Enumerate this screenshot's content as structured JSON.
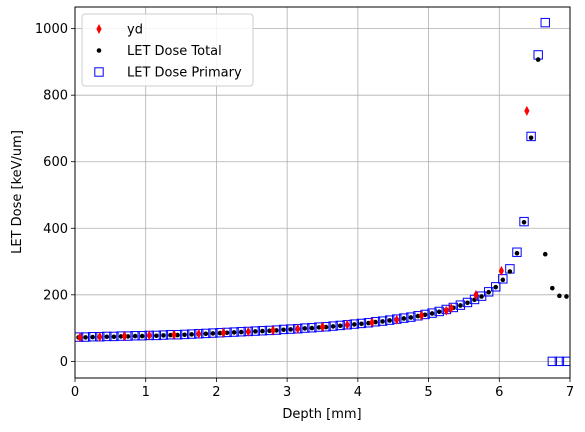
{
  "chart_data": {
    "type": "scatter",
    "xlabel": "Depth [mm]",
    "ylabel": "LET Dose [keV/um]",
    "xlim": [
      0,
      7
    ],
    "ylim": [
      -50,
      1065
    ],
    "xticks": [
      0,
      1,
      2,
      3,
      4,
      5,
      6,
      7
    ],
    "yticks": [
      0,
      200,
      400,
      600,
      800,
      1000
    ],
    "grid": true,
    "legend_position": "upper-left",
    "series": [
      {
        "name": "yd",
        "marker": "thin_diamond",
        "color": "#ff0000",
        "x": [
          0.07,
          0.35,
          0.7,
          1.05,
          1.4,
          1.75,
          2.1,
          2.45,
          2.8,
          3.15,
          3.5,
          3.85,
          4.2,
          4.55,
          4.9,
          5.25,
          5.32,
          5.67,
          6.03,
          6.39
        ],
        "y": [
          72,
          74,
          76,
          78,
          80,
          83,
          86,
          89,
          93,
          98,
          104,
          110,
          117,
          125,
          138,
          152,
          160,
          200,
          272,
          753
        ]
      },
      {
        "name": "LET Dose Total",
        "marker": "dot",
        "color": "#000000",
        "x": [
          0.05,
          0.15,
          0.25,
          0.35,
          0.45,
          0.55,
          0.65,
          0.75,
          0.85,
          0.95,
          1.05,
          1.15,
          1.25,
          1.35,
          1.45,
          1.55,
          1.65,
          1.75,
          1.85,
          1.95,
          2.05,
          2.15,
          2.25,
          2.35,
          2.45,
          2.55,
          2.65,
          2.75,
          2.85,
          2.95,
          3.05,
          3.15,
          3.25,
          3.35,
          3.45,
          3.55,
          3.65,
          3.75,
          3.85,
          3.95,
          4.05,
          4.15,
          4.25,
          4.35,
          4.45,
          4.55,
          4.65,
          4.75,
          4.85,
          4.95,
          5.05,
          5.15,
          5.25,
          5.35,
          5.45,
          5.55,
          5.65,
          5.75,
          5.85,
          5.95,
          6.05,
          6.15,
          6.25,
          6.35,
          6.45,
          6.55,
          6.65,
          6.75,
          6.85,
          6.95
        ],
        "y": [
          72,
          72,
          73,
          73,
          74,
          74,
          75,
          75,
          76,
          76,
          77,
          77,
          78,
          79,
          79,
          80,
          81,
          82,
          83,
          84,
          85,
          86,
          87,
          88,
          89,
          90,
          91,
          92,
          93,
          95,
          96,
          97,
          99,
          100,
          102,
          103,
          105,
          107,
          109,
          111,
          113,
          115,
          118,
          120,
          123,
          126,
          129,
          132,
          136,
          140,
          144,
          149,
          155,
          161,
          168,
          176,
          185,
          195,
          208,
          223,
          245,
          270,
          325,
          418,
          672,
          907,
          322,
          220,
          197,
          195
        ]
      },
      {
        "name": "LET Dose Primary",
        "marker": "square",
        "color": "#0000ff",
        "x": [
          0.05,
          0.15,
          0.25,
          0.35,
          0.45,
          0.55,
          0.65,
          0.75,
          0.85,
          0.95,
          1.05,
          1.15,
          1.25,
          1.35,
          1.45,
          1.55,
          1.65,
          1.75,
          1.85,
          1.95,
          2.05,
          2.15,
          2.25,
          2.35,
          2.45,
          2.55,
          2.65,
          2.75,
          2.85,
          2.95,
          3.05,
          3.15,
          3.25,
          3.35,
          3.45,
          3.55,
          3.65,
          3.75,
          3.85,
          3.95,
          4.05,
          4.15,
          4.25,
          4.35,
          4.45,
          4.55,
          4.65,
          4.75,
          4.85,
          4.95,
          5.05,
          5.15,
          5.25,
          5.35,
          5.45,
          5.55,
          5.65,
          5.75,
          5.85,
          5.95,
          6.05,
          6.15,
          6.25,
          6.35,
          6.45,
          6.55,
          6.65,
          6.75,
          6.85,
          6.95
        ],
        "y": [
          73,
          73,
          74,
          74,
          75,
          75,
          76,
          76,
          77,
          77,
          78,
          78,
          79,
          80,
          80,
          81,
          82,
          83,
          84,
          85,
          86,
          87,
          88,
          89,
          90,
          91,
          92,
          93,
          94,
          96,
          97,
          98,
          100,
          101,
          103,
          104,
          106,
          108,
          110,
          112,
          114,
          116,
          119,
          121,
          124,
          127,
          130,
          133,
          137,
          141,
          145,
          150,
          156,
          162,
          169,
          177,
          186,
          196,
          209,
          224,
          248,
          278,
          328,
          420,
          676,
          921,
          1018,
          0,
          0,
          0
        ]
      }
    ]
  }
}
